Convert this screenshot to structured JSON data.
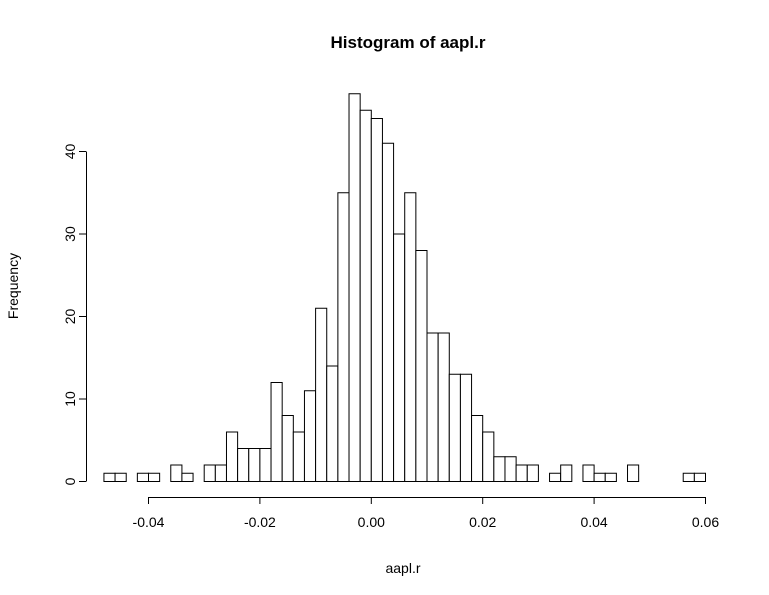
{
  "chart_data": {
    "type": "bar",
    "title": "Histogram of aapl.r",
    "xlabel": "aapl.r",
    "ylabel": "Frequency",
    "bin_width": 0.002,
    "bins_start": [
      -0.048,
      -0.046,
      -0.044,
      -0.042,
      -0.04,
      -0.038,
      -0.036,
      -0.034,
      -0.032,
      -0.03,
      -0.028,
      -0.026,
      -0.024,
      -0.022,
      -0.02,
      -0.018,
      -0.016,
      -0.014,
      -0.012,
      -0.01,
      -0.008,
      -0.006,
      -0.004,
      -0.002,
      0.0,
      0.002,
      0.004,
      0.006,
      0.008,
      0.01,
      0.012,
      0.014,
      0.016,
      0.018,
      0.02,
      0.022,
      0.024,
      0.026,
      0.028,
      0.03,
      0.032,
      0.034,
      0.036,
      0.038,
      0.04,
      0.042,
      0.044,
      0.046,
      0.048,
      0.05,
      0.052,
      0.054,
      0.056,
      0.058
    ],
    "values": [
      1,
      1,
      0,
      1,
      1,
      0,
      2,
      1,
      0,
      2,
      2,
      6,
      4,
      4,
      4,
      12,
      8,
      6,
      11,
      21,
      14,
      35,
      47,
      45,
      44,
      41,
      30,
      35,
      28,
      18,
      18,
      13,
      13,
      8,
      6,
      3,
      3,
      2,
      2,
      0,
      1,
      2,
      0,
      2,
      1,
      1,
      0,
      2,
      0,
      0,
      0,
      0,
      1,
      1
    ],
    "xlim": [
      -0.048,
      0.06
    ],
    "ylim": [
      0,
      47
    ],
    "xticks": [
      -0.04,
      -0.02,
      0.0,
      0.02,
      0.04,
      0.06
    ],
    "xtick_labels": [
      "-0.04",
      "-0.02",
      "0.00",
      "0.02",
      "0.04",
      "0.06"
    ],
    "yticks": [
      0,
      10,
      20,
      30,
      40
    ],
    "ytick_labels": [
      "0",
      "10",
      "20",
      "30",
      "40"
    ],
    "grid": false,
    "bar_fill": "#ffffff",
    "bar_stroke": "#000000"
  }
}
